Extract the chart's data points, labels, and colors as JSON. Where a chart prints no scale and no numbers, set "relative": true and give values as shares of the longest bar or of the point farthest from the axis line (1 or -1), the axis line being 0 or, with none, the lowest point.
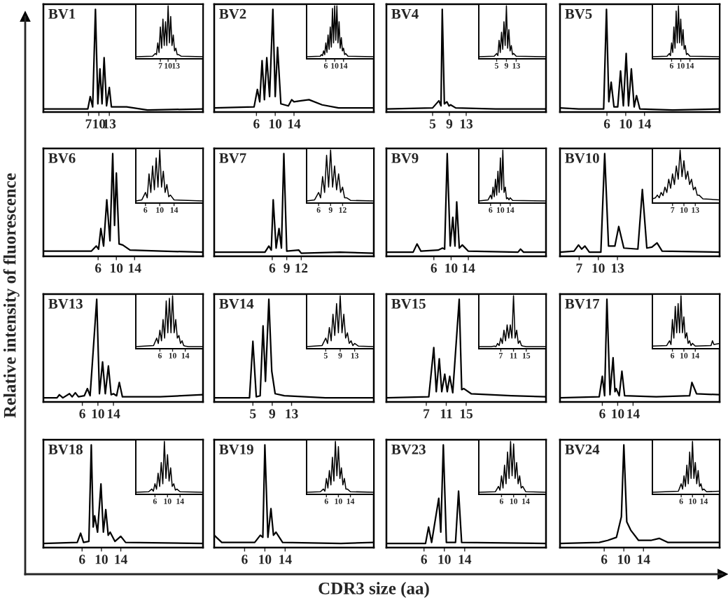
{
  "chart_data": [
    {
      "type": "other",
      "xlabel": "CDR3 size (aa)",
      "ylabel": "Relative intensity of fluorescence"
    },
    {
      "type": "line",
      "title": "BV1",
      "relative": true,
      "tick_labels": "x",
      "xlim": [
        -6,
        40
      ],
      "xticks": [
        7,
        10,
        13
      ],
      "series": [
        {
          "color": "#000000",
          "x": [
            -6,
            6.8,
            7.5,
            8.2,
            9,
            9.7,
            10.3,
            10.9,
            11.5,
            12.2,
            13,
            13.6,
            18,
            24,
            40
          ],
          "values": [
            0.03,
            0.03,
            0.15,
            0.05,
            1,
            0.08,
            0.42,
            0.08,
            0.53,
            0.06,
            0.24,
            0.05,
            0.05,
            0.02,
            0.03
          ]
        }
      ]
    },
    {
      "type": "line",
      "relative": true,
      "tick_labels": "x",
      "xlim": [
        -2.5,
        23.5
      ],
      "xticks": [
        7,
        10,
        13
      ],
      "series": [
        {
          "color": "#000000",
          "x": [
            -2.5,
            4,
            5,
            5.5,
            6,
            6.5,
            7,
            7.5,
            8,
            8.5,
            9,
            9.5,
            10,
            10.5,
            11,
            11.5,
            12,
            12.5,
            13,
            13.5,
            14,
            15,
            23.5
          ],
          "values": [
            0.04,
            0.05,
            0.1,
            0.08,
            0.3,
            0.12,
            0.6,
            0.2,
            0.75,
            0.25,
            0.7,
            0.25,
            1,
            0.3,
            0.8,
            0.25,
            0.45,
            0.15,
            0.2,
            0.08,
            0.08,
            0.05,
            0.04
          ]
        }
      ]
    },
    {
      "type": "line",
      "title": "BV2",
      "relative": true,
      "tick_labels": "x",
      "xlim": [
        -3,
        31
      ],
      "xticks": [
        6,
        10,
        14
      ],
      "series": [
        {
          "color": "#000000",
          "x": [
            -3,
            5.5,
            6.2,
            6.7,
            7.2,
            7.7,
            8.2,
            8.8,
            9.5,
            10,
            10.5,
            11.2,
            12.8,
            13.5,
            14,
            15.5,
            17.2,
            20,
            23.5,
            31
          ],
          "values": [
            0.04,
            0.05,
            0.22,
            0.1,
            0.5,
            0.12,
            0.53,
            0.15,
            1,
            0.15,
            0.63,
            0.08,
            0.06,
            0.12,
            0.1,
            0.11,
            0.12,
            0.07,
            0.04,
            0.04
          ]
        }
      ]
    },
    {
      "type": "line",
      "relative": true,
      "tick_labels": "x",
      "xlim": [
        -2.7,
        27.7
      ],
      "xticks": [
        6,
        10,
        14
      ],
      "series": [
        {
          "color": "#000000",
          "x": [
            -2.7,
            3.5,
            4,
            4.5,
            5,
            5.5,
            6,
            6.5,
            7,
            7.5,
            8,
            8.5,
            9,
            9.5,
            10,
            10.5,
            11,
            11.5,
            12,
            12.5,
            13,
            13.5,
            14,
            14.5,
            15,
            16,
            27.7
          ],
          "values": [
            0.04,
            0.05,
            0.08,
            0.06,
            0.15,
            0.08,
            0.3,
            0.12,
            0.45,
            0.18,
            0.6,
            0.22,
            0.95,
            0.3,
            1,
            0.35,
            1,
            0.3,
            0.7,
            0.2,
            0.4,
            0.15,
            0.2,
            0.08,
            0.1,
            0.05,
            0.04
          ]
        }
      ]
    },
    {
      "type": "line",
      "title": "BV4",
      "relative": true,
      "tick_labels": "x",
      "xlim": [
        -6,
        32
      ],
      "xticks": [
        5,
        9,
        13
      ],
      "series": [
        {
          "color": "#000000",
          "x": [
            -6,
            5,
            6.5,
            7,
            7.3,
            7.8,
            8.4,
            8.9,
            9.3,
            10.5,
            20,
            32
          ],
          "values": [
            0.03,
            0.04,
            0.11,
            0.06,
            1,
            0.08,
            0.1,
            0.06,
            0.07,
            0.04,
            0.03,
            0.03
          ]
        }
      ]
    },
    {
      "type": "line",
      "relative": true,
      "tick_labels": "x",
      "xlim": [
        -2.3,
        25.2
      ],
      "xticks": [
        5,
        9,
        13
      ],
      "series": [
        {
          "color": "#000000",
          "x": [
            -2.3,
            4,
            5,
            5.5,
            6,
            6.5,
            7,
            7.5,
            8,
            8.5,
            9,
            9.5,
            10,
            10.5,
            11,
            11.5,
            12,
            13,
            25.2
          ],
          "values": [
            0.04,
            0.05,
            0.1,
            0.06,
            0.35,
            0.12,
            0.5,
            0.18,
            0.7,
            0.25,
            1,
            0.2,
            0.55,
            0.15,
            0.25,
            0.08,
            0.1,
            0.05,
            0.04
          ]
        }
      ]
    },
    {
      "type": "line",
      "title": "BV5",
      "relative": true,
      "tick_labels": "x",
      "xlim": [
        -4,
        30
      ],
      "xticks": [
        6,
        10,
        14
      ],
      "series": [
        {
          "color": "#000000",
          "x": [
            -4,
            0,
            5.3,
            5.9,
            6.4,
            6.9,
            7.5,
            8.3,
            8.9,
            9.5,
            10.1,
            10.6,
            11.2,
            11.8,
            12.3,
            13,
            20,
            30
          ],
          "values": [
            0.04,
            0.03,
            0.03,
            1,
            0.1,
            0.29,
            0.05,
            0.05,
            0.4,
            0.06,
            0.57,
            0.06,
            0.42,
            0.05,
            0.16,
            0.03,
            0.02,
            0.03
          ]
        }
      ]
    },
    {
      "type": "line",
      "relative": true,
      "tick_labels": "x",
      "xlim": [
        -2.4,
        27
      ],
      "xticks": [
        6,
        10,
        14
      ],
      "series": [
        {
          "color": "#000000",
          "x": [
            -2.4,
            4,
            5,
            5.5,
            6,
            6.5,
            7,
            7.5,
            8,
            8.5,
            9,
            9.5,
            10,
            10.5,
            11,
            11.5,
            12,
            12.5,
            13,
            14,
            27
          ],
          "values": [
            0.04,
            0.05,
            0.1,
            0.06,
            0.3,
            0.12,
            0.6,
            0.2,
            0.9,
            0.3,
            1,
            0.3,
            0.75,
            0.25,
            0.55,
            0.18,
            0.25,
            0.08,
            0.1,
            0.05,
            0.04
          ]
        }
      ]
    },
    {
      "type": "line",
      "title": "BV6",
      "relative": true,
      "tick_labels": "x",
      "xlim": [
        -6,
        29
      ],
      "xticks": [
        6,
        10,
        14
      ],
      "series": [
        {
          "color": "#000000",
          "x": [
            -6,
            4.5,
            5.6,
            6.1,
            6.6,
            7.2,
            7.9,
            8.6,
            9.2,
            9.6,
            10,
            10.6,
            11.4,
            13,
            20,
            29
          ],
          "values": [
            0.05,
            0.05,
            0.1,
            0.07,
            0.27,
            0.1,
            0.55,
            0.15,
            1,
            0.3,
            0.81,
            0.12,
            0.11,
            0.06,
            0.05,
            0.04
          ]
        }
      ]
    },
    {
      "type": "line",
      "relative": true,
      "tick_labels": "x",
      "xlim": [
        3.3,
        22.1
      ],
      "xticks": [
        6,
        10,
        14
      ],
      "series": [
        {
          "color": "#000000",
          "x": [
            3.3,
            5,
            6,
            6.5,
            7,
            7.5,
            8,
            8.5,
            9,
            9.5,
            10,
            10.5,
            11,
            11.5,
            12,
            12.5,
            13,
            14,
            22.1
          ],
          "values": [
            0.04,
            0.06,
            0.2,
            0.1,
            0.55,
            0.2,
            0.7,
            0.25,
            0.85,
            0.3,
            1,
            0.3,
            0.6,
            0.2,
            0.35,
            0.12,
            0.15,
            0.06,
            0.04
          ]
        }
      ]
    },
    {
      "type": "line",
      "title": "BV7",
      "relative": true,
      "tick_labels": "x",
      "xlim": [
        -6,
        27
      ],
      "xticks": [
        6,
        9,
        12
      ],
      "series": [
        {
          "color": "#000000",
          "x": [
            -6,
            4.5,
            5.3,
            5.8,
            6.2,
            6.8,
            7.4,
            7.9,
            8.4,
            9,
            11.5,
            12,
            20,
            27
          ],
          "values": [
            0.04,
            0.04,
            0.1,
            0.06,
            0.55,
            0.08,
            0.27,
            0.08,
            1,
            0.05,
            0.06,
            0.03,
            0.04,
            0.03
          ]
        }
      ]
    },
    {
      "type": "line",
      "relative": true,
      "tick_labels": "x",
      "xlim": [
        3,
        19.8
      ],
      "xticks": [
        6,
        9,
        12
      ],
      "series": [
        {
          "color": "#000000",
          "x": [
            3,
            5,
            6,
            6.5,
            7,
            7.5,
            8,
            8.5,
            9,
            9.5,
            10,
            10.5,
            11,
            11.5,
            12,
            12.5,
            13,
            14,
            19.8
          ],
          "values": [
            0.04,
            0.06,
            0.2,
            0.1,
            0.5,
            0.2,
            0.9,
            0.3,
            1,
            0.3,
            0.7,
            0.25,
            0.55,
            0.2,
            0.3,
            0.1,
            0.1,
            0.05,
            0.04
          ]
        }
      ]
    },
    {
      "type": "line",
      "title": "BV9",
      "relative": true,
      "tick_labels": "x",
      "xlim": [
        -5,
        32
      ],
      "xticks": [
        6,
        10,
        14
      ],
      "series": [
        {
          "color": "#000000",
          "x": [
            -5,
            1.2,
            2.1,
            3,
            7,
            8,
            8.5,
            9.1,
            9.8,
            10.4,
            10.9,
            11.3,
            11.9,
            12.6,
            14,
            25.5,
            26.1,
            26.8,
            32
          ],
          "values": [
            0.04,
            0.04,
            0.12,
            0.05,
            0.06,
            0.08,
            0.07,
            1,
            0.1,
            0.38,
            0.1,
            0.53,
            0.08,
            0.11,
            0.05,
            0.04,
            0.07,
            0.04,
            0.04
          ]
        }
      ]
    },
    {
      "type": "line",
      "relative": true,
      "tick_labels": "x",
      "xlim": [
        1.2,
        28.6
      ],
      "xticks": [
        6,
        10,
        14
      ],
      "series": [
        {
          "color": "#000000",
          "x": [
            1.2,
            5,
            6,
            6.5,
            7,
            7.5,
            8,
            8.5,
            9,
            9.5,
            10,
            10.5,
            11,
            11.5,
            12,
            12.5,
            13,
            13.5,
            14,
            15,
            28.6
          ],
          "values": [
            0.04,
            0.06,
            0.15,
            0.08,
            0.3,
            0.12,
            0.45,
            0.15,
            0.6,
            0.2,
            0.85,
            0.25,
            1,
            0.2,
            0.3,
            0.08,
            0.1,
            0.06,
            0.1,
            0.05,
            0.04
          ]
        }
      ]
    },
    {
      "type": "line",
      "title": "BV10",
      "relative": true,
      "tick_labels": "x",
      "xlim": [
        4,
        29
      ],
      "xticks": [
        7,
        10,
        13
      ],
      "series": [
        {
          "color": "#000000",
          "x": [
            4,
            6.2,
            6.9,
            7.4,
            7.9,
            8.6,
            10.4,
            11,
            11.6,
            12.6,
            13.2,
            14,
            16.2,
            16.9,
            17.6,
            18.4,
            19.2,
            20,
            29
          ],
          "values": [
            0.04,
            0.05,
            0.11,
            0.07,
            0.1,
            0.04,
            0.04,
            1,
            0.1,
            0.1,
            0.29,
            0.08,
            0.07,
            0.65,
            0.08,
            0.09,
            0.13,
            0.05,
            0.04
          ]
        }
      ]
    },
    {
      "type": "line",
      "relative": true,
      "tick_labels": "x",
      "xlim": [
        1.7,
        19.4
      ],
      "xticks": [
        7,
        10,
        13
      ],
      "series": [
        {
          "color": "#000000",
          "x": [
            1.7,
            2.5,
            3,
            3.5,
            4,
            4.5,
            5,
            5.5,
            6,
            6.5,
            7,
            7.5,
            8,
            8.5,
            9,
            9.5,
            10,
            10.5,
            11,
            11.5,
            12,
            12.5,
            13,
            13.5,
            14,
            15,
            19.4
          ],
          "values": [
            0.08,
            0.1,
            0.15,
            0.1,
            0.2,
            0.14,
            0.3,
            0.2,
            0.45,
            0.28,
            0.55,
            0.35,
            0.7,
            0.45,
            1,
            0.5,
            0.8,
            0.45,
            0.6,
            0.35,
            0.45,
            0.25,
            0.3,
            0.15,
            0.15,
            0.08,
            0.06
          ]
        }
      ]
    },
    {
      "type": "line",
      "title": "BV13",
      "relative": true,
      "tick_labels": "x",
      "xlim": [
        -4,
        37
      ],
      "xticks": [
        6,
        10,
        14
      ],
      "series": [
        {
          "color": "#000000",
          "x": [
            -4,
            -0.5,
            0.1,
            1,
            2.7,
            3.4,
            4.2,
            5,
            6.5,
            7.3,
            8,
            9.7,
            10.4,
            11.2,
            11.9,
            12.7,
            13.4,
            14,
            14.8,
            15.5,
            16.3,
            26,
            37
          ],
          "values": [
            0.04,
            0.04,
            0.07,
            0.04,
            0.08,
            0.05,
            0.09,
            0.05,
            0.06,
            0.13,
            0.06,
            1,
            0.08,
            0.39,
            0.08,
            0.35,
            0.07,
            0.08,
            0.06,
            0.19,
            0.05,
            0.05,
            0.07
          ]
        }
      ]
    },
    {
      "type": "line",
      "relative": true,
      "tick_labels": "x",
      "xlim": [
        -1.6,
        19.6
      ],
      "xticks": [
        6,
        10,
        14
      ],
      "series": [
        {
          "color": "#000000",
          "x": [
            -1.6,
            4,
            5,
            5.5,
            6,
            6.5,
            7,
            7.5,
            8,
            8.5,
            9,
            9.5,
            10,
            10.5,
            11,
            11.5,
            12,
            12.5,
            13,
            13.5,
            14,
            15,
            19.6
          ],
          "values": [
            0.04,
            0.06,
            0.2,
            0.1,
            0.35,
            0.15,
            0.55,
            0.2,
            0.9,
            0.3,
            0.95,
            0.3,
            1,
            0.3,
            0.55,
            0.2,
            0.25,
            0.1,
            0.15,
            0.06,
            0.05,
            0.04,
            0.04
          ]
        }
      ]
    },
    {
      "type": "line",
      "title": "BV14",
      "relative": true,
      "tick_labels": "x",
      "xlim": [
        -3,
        30
      ],
      "xticks": [
        5,
        9,
        13
      ],
      "series": [
        {
          "color": "#000000",
          "x": [
            -3,
            4.3,
            5,
            5.7,
            6.5,
            7.1,
            7.6,
            8.3,
            8.9,
            9.6,
            11.5,
            20,
            30
          ],
          "values": [
            0.04,
            0.04,
            0.59,
            0.05,
            0.06,
            0.74,
            0.2,
            1,
            0.3,
            0.08,
            0.06,
            0.04,
            0.04
          ]
        }
      ]
    },
    {
      "type": "line",
      "relative": true,
      "tick_labels": "x",
      "xlim": [
        -0.3,
        18.3
      ],
      "xticks": [
        5,
        9,
        13
      ],
      "series": [
        {
          "color": "#000000",
          "x": [
            -0.3,
            4,
            5,
            5.5,
            6,
            6.5,
            7,
            7.5,
            8,
            8.5,
            9,
            9.5,
            10,
            10.5,
            11,
            11.5,
            12,
            12.5,
            13,
            14,
            18.3
          ],
          "values": [
            0.04,
            0.06,
            0.2,
            0.1,
            0.4,
            0.15,
            0.65,
            0.25,
            0.85,
            0.3,
            1,
            0.3,
            0.65,
            0.2,
            0.3,
            0.1,
            0.15,
            0.06,
            0.1,
            0.05,
            0.04
          ]
        }
      ]
    },
    {
      "type": "line",
      "title": "BV15",
      "relative": true,
      "tick_labels": "x",
      "xlim": [
        -1,
        31
      ],
      "xticks": [
        7,
        11,
        15
      ],
      "series": [
        {
          "color": "#000000",
          "x": [
            -1,
            7.5,
            8.5,
            9,
            9.6,
            10.1,
            10.7,
            11.2,
            11.7,
            12.3,
            13.6,
            14.1,
            14.5,
            16,
            24,
            31
          ],
          "values": [
            0.04,
            0.05,
            0.53,
            0.1,
            0.42,
            0.1,
            0.27,
            0.1,
            0.25,
            0.09,
            1,
            0.12,
            0.13,
            0.08,
            0.06,
            0.05
          ]
        }
      ]
    },
    {
      "type": "line",
      "relative": true,
      "tick_labels": "x",
      "xlim": [
        0.1,
        21.2
      ],
      "xticks": [
        7,
        11,
        15
      ],
      "series": [
        {
          "color": "#000000",
          "x": [
            0.1,
            4,
            5,
            5.5,
            6,
            6.5,
            7,
            7.5,
            8,
            8.5,
            9,
            9.5,
            10,
            10.5,
            11,
            11.5,
            12,
            12.5,
            13,
            13.5,
            14,
            15,
            21.2
          ],
          "values": [
            0.04,
            0.04,
            0.05,
            0.04,
            0.1,
            0.06,
            0.2,
            0.1,
            0.35,
            0.15,
            0.45,
            0.2,
            0.45,
            0.2,
            1,
            0.2,
            0.35,
            0.1,
            0.15,
            0.06,
            0.05,
            0.04,
            0.04
          ]
        }
      ]
    },
    {
      "type": "line",
      "title": "BV17",
      "relative": true,
      "tick_labels": "x",
      "xlim": [
        -5,
        36.5
      ],
      "xticks": [
        6,
        10,
        14
      ],
      "series": [
        {
          "color": "#000000",
          "x": [
            -5,
            5.2,
            6,
            6.6,
            7.2,
            8,
            8.8,
            9.3,
            9.6,
            10.4,
            11.1,
            11.8,
            20,
            28.7,
            29.3,
            30.5,
            36.5
          ],
          "values": [
            0.04,
            0.05,
            0.25,
            0.06,
            1,
            0.07,
            0.43,
            0.1,
            0.13,
            0.06,
            0.3,
            0.06,
            0.05,
            0.06,
            0.19,
            0.08,
            0.07
          ]
        }
      ]
    },
    {
      "type": "line",
      "relative": true,
      "tick_labels": "x",
      "xlim": [
        -1,
        22.5
      ],
      "xticks": [
        6,
        10,
        14
      ],
      "series": [
        {
          "color": "#000000",
          "x": [
            -1,
            4,
            5,
            5.5,
            6,
            6.5,
            7,
            7.5,
            8,
            8.5,
            9,
            9.5,
            10,
            10.5,
            11,
            11.5,
            12,
            12.5,
            13,
            14,
            19.5,
            20,
            20.5,
            22.5
          ],
          "values": [
            0.05,
            0.06,
            0.15,
            0.08,
            0.55,
            0.2,
            0.8,
            0.3,
            0.85,
            0.3,
            1,
            0.3,
            0.6,
            0.2,
            0.3,
            0.1,
            0.15,
            0.06,
            0.1,
            0.05,
            0.06,
            0.15,
            0.08,
            0.1
          ]
        }
      ]
    },
    {
      "type": "line",
      "title": "BV18",
      "relative": true,
      "tick_labels": "x",
      "xlim": [
        -2,
        31
      ],
      "xticks": [
        6,
        10,
        14
      ],
      "series": [
        {
          "color": "#000000",
          "x": [
            -2,
            5,
            5.7,
            6.3,
            7.4,
            7.9,
            8.3,
            8.6,
            9.2,
            9.9,
            10.4,
            10.9,
            11.4,
            11.8,
            12.8,
            14,
            15,
            31
          ],
          "values": [
            0.04,
            0.05,
            0.14,
            0.05,
            0.06,
            1,
            0.2,
            0.31,
            0.15,
            0.62,
            0.15,
            0.37,
            0.12,
            0.15,
            0.06,
            0.11,
            0.05,
            0.04
          ]
        }
      ]
    },
    {
      "type": "line",
      "relative": true,
      "tick_labels": "x",
      "xlim": [
        -0.1,
        21.3
      ],
      "xticks": [
        6,
        10,
        14
      ],
      "series": [
        {
          "color": "#000000",
          "x": [
            -0.1,
            4,
            5,
            5.5,
            6,
            6.5,
            7,
            7.5,
            8,
            8.5,
            9,
            9.5,
            10,
            10.5,
            11,
            11.5,
            12,
            12.5,
            13,
            14,
            21.3
          ],
          "values": [
            0.04,
            0.05,
            0.1,
            0.06,
            0.2,
            0.1,
            0.4,
            0.15,
            0.6,
            0.2,
            1,
            0.3,
            0.75,
            0.25,
            0.5,
            0.15,
            0.2,
            0.08,
            0.1,
            0.05,
            0.04
          ]
        }
      ]
    },
    {
      "type": "line",
      "title": "BV19",
      "relative": true,
      "tick_labels": "x",
      "xlim": [
        0,
        31.5
      ],
      "xticks": [
        6,
        10,
        14
      ],
      "series": [
        {
          "color": "#000000",
          "x": [
            0,
            1.5,
            8,
            9.1,
            9.6,
            10,
            10.6,
            11.2,
            11.7,
            12.2,
            13.5,
            25,
            31.5
          ],
          "values": [
            0.12,
            0.05,
            0.05,
            0.12,
            0.1,
            1,
            0.1,
            0.38,
            0.12,
            0.15,
            0.05,
            0.04,
            0.05
          ]
        }
      ]
    },
    {
      "type": "line",
      "relative": true,
      "tick_labels": "x",
      "xlim": [
        -0.6,
        21.8
      ],
      "xticks": [
        6,
        10,
        14
      ],
      "series": [
        {
          "color": "#000000",
          "x": [
            -0.6,
            4,
            5,
            5.5,
            6,
            6.5,
            7,
            7.5,
            8,
            8.5,
            9,
            9.5,
            10,
            10.5,
            11,
            11.5,
            12,
            12.5,
            13,
            14,
            21.8
          ],
          "values": [
            0.04,
            0.05,
            0.1,
            0.06,
            0.3,
            0.12,
            0.45,
            0.18,
            0.7,
            0.25,
            1,
            0.35,
            0.9,
            0.3,
            0.5,
            0.18,
            0.3,
            0.1,
            0.1,
            0.05,
            0.04
          ]
        }
      ]
    },
    {
      "type": "line",
      "title": "BV23",
      "relative": true,
      "tick_labels": "x",
      "xlim": [
        -1.4,
        30
      ],
      "xticks": [
        6,
        10,
        14
      ],
      "series": [
        {
          "color": "#000000",
          "x": [
            -1.4,
            6.3,
            6.9,
            7.5,
            8.9,
            9.3,
            9.8,
            10.4,
            12.2,
            12.8,
            13.4,
            30
          ],
          "values": [
            0.04,
            0.04,
            0.2,
            0.05,
            0.48,
            0.15,
            1,
            0.05,
            0.05,
            0.55,
            0.05,
            0.04
          ]
        }
      ]
    },
    {
      "type": "line",
      "relative": true,
      "tick_labels": "x",
      "xlim": [
        -1.5,
        20.7
      ],
      "xticks": [
        6,
        10,
        14
      ],
      "series": [
        {
          "color": "#000000",
          "x": [
            -1.5,
            4,
            5,
            5.5,
            6,
            6.5,
            7,
            7.5,
            8,
            8.5,
            9,
            9.5,
            10,
            10.5,
            11,
            11.5,
            12,
            12.5,
            13,
            14,
            20.7
          ],
          "values": [
            0.04,
            0.05,
            0.15,
            0.08,
            0.35,
            0.12,
            0.55,
            0.2,
            0.8,
            0.3,
            1,
            0.35,
            0.95,
            0.3,
            0.6,
            0.2,
            0.35,
            0.12,
            0.15,
            0.05,
            0.04
          ]
        }
      ]
    },
    {
      "type": "line",
      "title": "BV24",
      "relative": true,
      "tick_labels": "x",
      "xlim": [
        -3,
        29.5
      ],
      "xticks": [
        6,
        10,
        14
      ],
      "series": [
        {
          "color": "#000000",
          "x": [
            -3,
            5,
            6.7,
            8.5,
            9.5,
            10,
            10.6,
            11.4,
            13,
            15.5,
            17.2,
            19,
            29.5
          ],
          "values": [
            0.04,
            0.05,
            0.07,
            0.1,
            0.3,
            1,
            0.25,
            0.17,
            0.07,
            0.07,
            0.09,
            0.05,
            0.05
          ]
        }
      ]
    },
    {
      "type": "line",
      "relative": true,
      "tick_labels": "x",
      "xlim": [
        -4.2,
        19.6
      ],
      "xticks": [
        6,
        10,
        14
      ],
      "series": [
        {
          "color": "#000000",
          "x": [
            -4.2,
            5,
            6,
            6.5,
            7,
            7.5,
            8,
            8.5,
            9,
            9.5,
            10,
            10.5,
            11,
            11.5,
            12,
            12.5,
            13,
            13.5,
            14,
            15,
            19.6
          ],
          "values": [
            0.04,
            0.06,
            0.2,
            0.1,
            0.35,
            0.15,
            0.55,
            0.2,
            0.8,
            0.3,
            1,
            0.3,
            0.6,
            0.2,
            0.45,
            0.15,
            0.2,
            0.08,
            0.1,
            0.05,
            0.06
          ]
        }
      ]
    }
  ]
}
